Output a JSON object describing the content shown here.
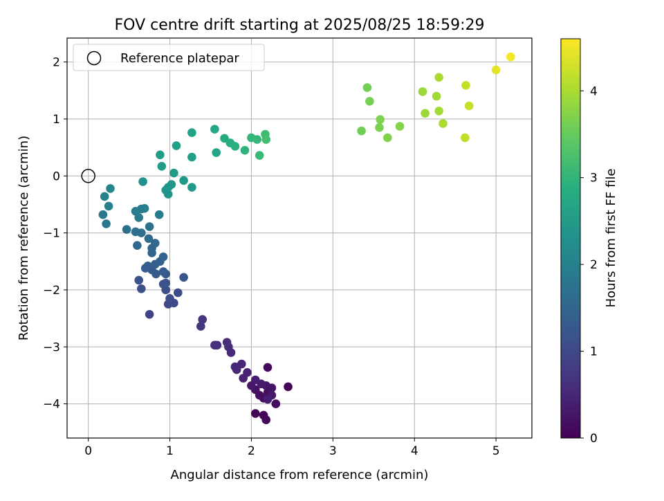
{
  "chart_data": {
    "type": "scatter",
    "title": "FOV centre drift starting at 2025/08/25 18:59:29",
    "xlabel": "Angular distance from reference (arcmin)",
    "ylabel": "Rotation from reference (arcmin)",
    "xlim": [
      -0.26,
      5.44
    ],
    "ylim": [
      -4.6,
      2.42
    ],
    "xticks": [
      0,
      1,
      2,
      3,
      4,
      5
    ],
    "yticks": [
      -4,
      -3,
      -2,
      -1,
      0,
      1,
      2
    ],
    "grid": true,
    "legend": {
      "position": "top-left",
      "entries": [
        "Reference platepar"
      ]
    },
    "reference_point": {
      "x": 0,
      "y": 0
    },
    "colorbar": {
      "label": "Hours from first FF file",
      "range": [
        0,
        4.6
      ],
      "ticks": [
        0,
        1,
        2,
        3,
        4
      ],
      "colormap": "viridis"
    },
    "points": [
      {
        "x": 2.05,
        "y": -4.17,
        "h": 0.05
      },
      {
        "x": 2.15,
        "y": -4.2,
        "h": 0.07
      },
      {
        "x": 2.18,
        "y": -4.28,
        "h": 0.1
      },
      {
        "x": 2.3,
        "y": -4.0,
        "h": 0.12
      },
      {
        "x": 2.15,
        "y": -3.9,
        "h": 0.15
      },
      {
        "x": 2.1,
        "y": -3.85,
        "h": 0.17
      },
      {
        "x": 2.2,
        "y": -3.8,
        "h": 0.2
      },
      {
        "x": 2.05,
        "y": -3.75,
        "h": 0.22
      },
      {
        "x": 2.25,
        "y": -3.72,
        "h": 0.25
      },
      {
        "x": 2.18,
        "y": -3.68,
        "h": 0.27
      },
      {
        "x": 2.0,
        "y": -3.68,
        "h": 0.3
      },
      {
        "x": 2.45,
        "y": -3.7,
        "h": 0.05
      },
      {
        "x": 2.2,
        "y": -3.36,
        "h": 0.1
      },
      {
        "x": 2.25,
        "y": -3.85,
        "h": 0.32
      },
      {
        "x": 2.12,
        "y": -3.65,
        "h": 0.35
      },
      {
        "x": 2.05,
        "y": -3.58,
        "h": 0.37
      },
      {
        "x": 2.2,
        "y": -3.92,
        "h": 0.4
      },
      {
        "x": 1.95,
        "y": -3.45,
        "h": 0.42
      },
      {
        "x": 1.9,
        "y": -3.55,
        "h": 0.45
      },
      {
        "x": 1.88,
        "y": -3.3,
        "h": 0.47
      },
      {
        "x": 1.8,
        "y": -3.35,
        "h": 0.5
      },
      {
        "x": 1.82,
        "y": -3.4,
        "h": 0.52
      },
      {
        "x": 1.75,
        "y": -3.1,
        "h": 0.55
      },
      {
        "x": 1.72,
        "y": -3.0,
        "h": 0.57
      },
      {
        "x": 1.7,
        "y": -2.92,
        "h": 0.6
      },
      {
        "x": 1.58,
        "y": -2.97,
        "h": 0.62
      },
      {
        "x": 1.55,
        "y": -2.97,
        "h": 0.65
      },
      {
        "x": 1.4,
        "y": -2.52,
        "h": 0.7
      },
      {
        "x": 1.38,
        "y": -2.64,
        "h": 0.72
      },
      {
        "x": 0.75,
        "y": -2.43,
        "h": 0.9
      },
      {
        "x": 0.98,
        "y": -2.25,
        "h": 1.0
      },
      {
        "x": 1.05,
        "y": -2.23,
        "h": 1.02
      },
      {
        "x": 1.0,
        "y": -2.15,
        "h": 1.05
      },
      {
        "x": 1.1,
        "y": -2.05,
        "h": 1.07
      },
      {
        "x": 0.95,
        "y": -2.0,
        "h": 1.1
      },
      {
        "x": 0.65,
        "y": -1.98,
        "h": 1.12
      },
      {
        "x": 0.92,
        "y": -1.9,
        "h": 1.15
      },
      {
        "x": 0.95,
        "y": -1.88,
        "h": 1.17
      },
      {
        "x": 0.62,
        "y": -1.83,
        "h": 1.2
      },
      {
        "x": 1.17,
        "y": -1.78,
        "h": 1.22
      },
      {
        "x": 0.95,
        "y": -1.72,
        "h": 1.25
      },
      {
        "x": 0.83,
        "y": -1.72,
        "h": 1.27
      },
      {
        "x": 0.78,
        "y": -1.65,
        "h": 1.3
      },
      {
        "x": 0.92,
        "y": -1.68,
        "h": 1.32
      },
      {
        "x": 0.7,
        "y": -1.62,
        "h": 1.35
      },
      {
        "x": 0.73,
        "y": -1.58,
        "h": 1.37
      },
      {
        "x": 0.82,
        "y": -1.55,
        "h": 1.4
      },
      {
        "x": 0.88,
        "y": -1.5,
        "h": 1.42
      },
      {
        "x": 0.92,
        "y": -1.42,
        "h": 1.45
      },
      {
        "x": 0.78,
        "y": -1.35,
        "h": 1.47
      },
      {
        "x": 0.78,
        "y": -1.27,
        "h": 1.5
      },
      {
        "x": 0.6,
        "y": -1.22,
        "h": 1.55
      },
      {
        "x": 0.82,
        "y": -1.18,
        "h": 1.57
      },
      {
        "x": 0.74,
        "y": -1.1,
        "h": 1.6
      },
      {
        "x": 0.65,
        "y": -1.0,
        "h": 1.65
      },
      {
        "x": 0.58,
        "y": -0.98,
        "h": 1.67
      },
      {
        "x": 0.47,
        "y": -0.94,
        "h": 1.7
      },
      {
        "x": 0.75,
        "y": -0.89,
        "h": 1.72
      },
      {
        "x": 0.22,
        "y": -0.84,
        "h": 1.8
      },
      {
        "x": 0.18,
        "y": -0.68,
        "h": 1.82
      },
      {
        "x": 0.62,
        "y": -0.73,
        "h": 1.85
      },
      {
        "x": 0.87,
        "y": -0.68,
        "h": 1.87
      },
      {
        "x": 0.58,
        "y": -0.62,
        "h": 1.9
      },
      {
        "x": 0.65,
        "y": -0.58,
        "h": 1.92
      },
      {
        "x": 0.69,
        "y": -0.57,
        "h": 1.95
      },
      {
        "x": 0.25,
        "y": -0.53,
        "h": 2.0
      },
      {
        "x": 0.2,
        "y": -0.36,
        "h": 2.05
      },
      {
        "x": 0.27,
        "y": -0.22,
        "h": 2.1
      },
      {
        "x": 0.67,
        "y": -0.1,
        "h": 2.3
      },
      {
        "x": 0.98,
        "y": -0.32,
        "h": 2.35
      },
      {
        "x": 0.95,
        "y": -0.25,
        "h": 2.37
      },
      {
        "x": 0.98,
        "y": -0.2,
        "h": 2.4
      },
      {
        "x": 1.02,
        "y": -0.15,
        "h": 2.42
      },
      {
        "x": 1.17,
        "y": -0.08,
        "h": 2.45
      },
      {
        "x": 1.27,
        "y": -0.2,
        "h": 2.47
      },
      {
        "x": 1.05,
        "y": 0.05,
        "h": 2.5
      },
      {
        "x": 0.9,
        "y": 0.17,
        "h": 2.52
      },
      {
        "x": 0.88,
        "y": 0.37,
        "h": 2.55
      },
      {
        "x": 1.27,
        "y": 0.33,
        "h": 2.57
      },
      {
        "x": 1.08,
        "y": 0.53,
        "h": 2.6
      },
      {
        "x": 1.27,
        "y": 0.76,
        "h": 2.65
      },
      {
        "x": 1.57,
        "y": 0.41,
        "h": 2.7
      },
      {
        "x": 1.55,
        "y": 0.82,
        "h": 2.75
      },
      {
        "x": 1.67,
        "y": 0.66,
        "h": 2.8
      },
      {
        "x": 1.74,
        "y": 0.58,
        "h": 2.85
      },
      {
        "x": 1.8,
        "y": 0.52,
        "h": 2.9
      },
      {
        "x": 1.92,
        "y": 0.45,
        "h": 2.95
      },
      {
        "x": 2.0,
        "y": 0.67,
        "h": 3.0
      },
      {
        "x": 2.07,
        "y": 0.64,
        "h": 3.05
      },
      {
        "x": 2.1,
        "y": 0.36,
        "h": 3.1
      },
      {
        "x": 2.17,
        "y": 0.73,
        "h": 3.15
      },
      {
        "x": 2.18,
        "y": 0.64,
        "h": 3.2
      },
      {
        "x": 3.35,
        "y": 0.79,
        "h": 3.6
      },
      {
        "x": 3.42,
        "y": 1.55,
        "h": 3.62
      },
      {
        "x": 3.45,
        "y": 1.31,
        "h": 3.65
      },
      {
        "x": 3.57,
        "y": 0.85,
        "h": 3.67
      },
      {
        "x": 3.58,
        "y": 0.99,
        "h": 3.7
      },
      {
        "x": 3.67,
        "y": 0.67,
        "h": 3.72
      },
      {
        "x": 3.82,
        "y": 0.87,
        "h": 3.75
      },
      {
        "x": 4.1,
        "y": 1.48,
        "h": 3.9
      },
      {
        "x": 4.13,
        "y": 1.1,
        "h": 3.92
      },
      {
        "x": 4.27,
        "y": 1.4,
        "h": 3.95
      },
      {
        "x": 4.3,
        "y": 1.14,
        "h": 3.97
      },
      {
        "x": 4.3,
        "y": 1.73,
        "h": 4.0
      },
      {
        "x": 4.35,
        "y": 0.92,
        "h": 4.02
      },
      {
        "x": 4.62,
        "y": 0.67,
        "h": 4.15
      },
      {
        "x": 4.63,
        "y": 1.59,
        "h": 4.18
      },
      {
        "x": 4.67,
        "y": 1.23,
        "h": 4.2
      },
      {
        "x": 5.0,
        "y": 1.86,
        "h": 4.45
      },
      {
        "x": 5.18,
        "y": 2.09,
        "h": 4.55
      }
    ]
  }
}
